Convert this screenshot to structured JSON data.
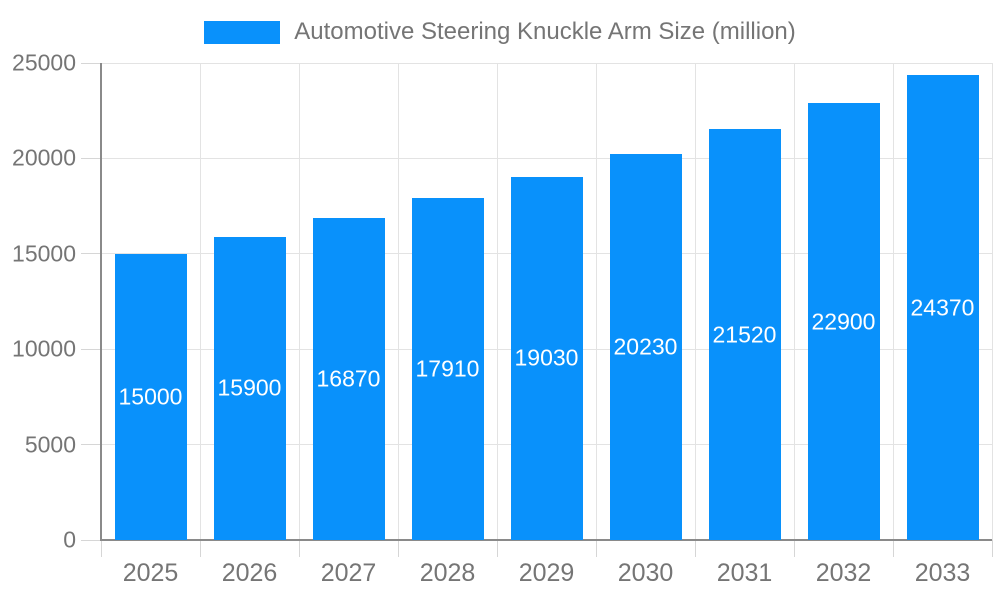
{
  "chart_data": {
    "type": "bar",
    "title": "Automotive Steering Knuckle Arm Size (million)",
    "legend": [
      "Automotive Steering Knuckle Arm Size (million)"
    ],
    "legend_position": "top",
    "categories": [
      "2025",
      "2026",
      "2027",
      "2028",
      "2029",
      "2030",
      "2031",
      "2032",
      "2033"
    ],
    "values": [
      15000,
      15900,
      16870,
      17910,
      19030,
      20230,
      21520,
      22900,
      24370
    ],
    "value_labels": [
      "15000",
      "15900",
      "16870",
      "17910",
      "19030",
      "20230",
      "21520",
      "22900",
      "24370"
    ],
    "xlabel": "",
    "ylabel": "",
    "ylim": [
      0,
      25000
    ],
    "yticks": [
      0,
      5000,
      10000,
      15000,
      20000,
      25000
    ],
    "grid": true,
    "colors": {
      "bar": "#0991fb",
      "grid": "#e3e3e3",
      "axis": "#8a8a8a",
      "tick": "#d6d6d6",
      "axis_text": "#757575",
      "value_label": "#ffffff",
      "background": "#ffffff"
    }
  }
}
